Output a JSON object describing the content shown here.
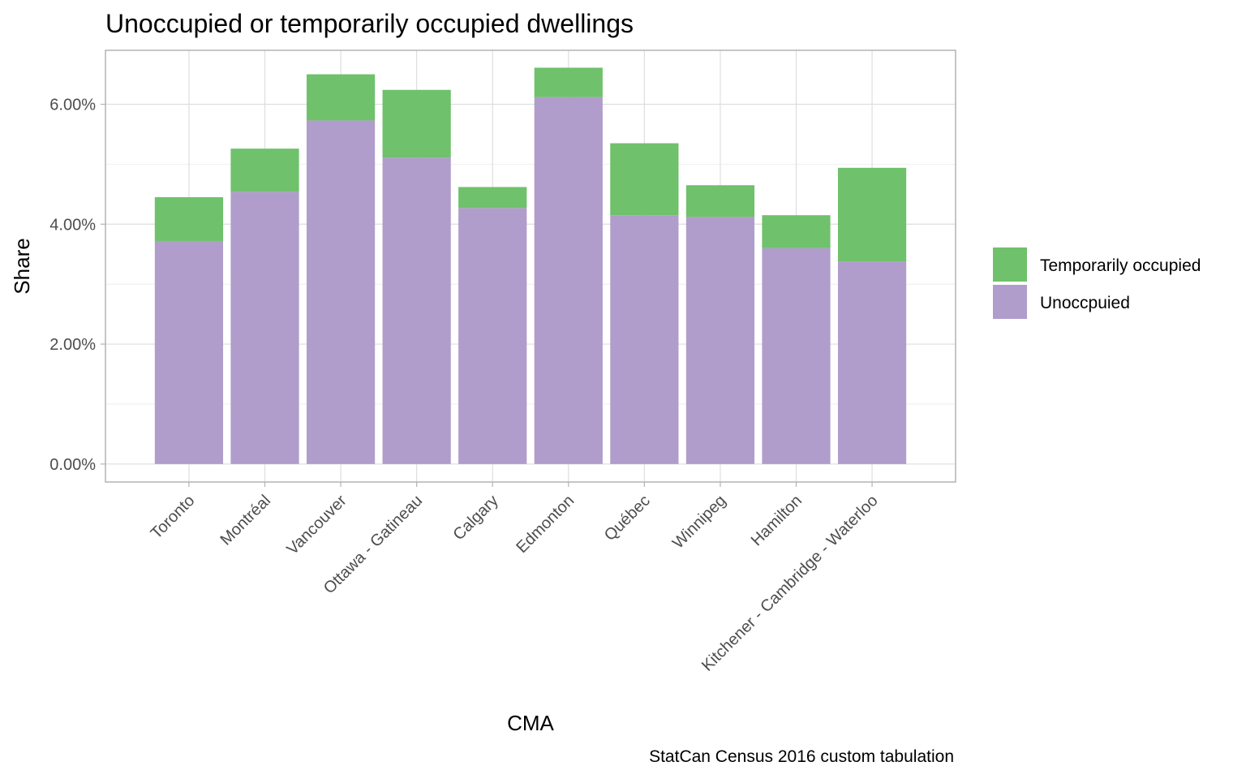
{
  "chart_data": {
    "type": "bar",
    "stacked": true,
    "title": "Unoccupied or temporarily occupied dwellings",
    "xlabel": "CMA",
    "ylabel": "Share",
    "caption": "StatCan Census 2016 custom tabulation",
    "categories": [
      "Toronto",
      "Montréal",
      "Vancouver",
      "Ottawa - Gatineau",
      "Calgary",
      "Edmonton",
      "Québec",
      "Winnipeg",
      "Hamilton",
      "Kitchener - Cambridge - Waterloo"
    ],
    "series": [
      {
        "name": "Unoccpuied",
        "color": "#b09dcb",
        "values": [
          3.72,
          4.54,
          5.73,
          5.11,
          4.27,
          6.12,
          4.15,
          4.12,
          3.6,
          3.38
        ]
      },
      {
        "name": "Temporarily occupied",
        "color": "#6fc16b",
        "values": [
          0.73,
          0.72,
          0.77,
          1.13,
          0.35,
          0.49,
          1.2,
          0.53,
          0.55,
          1.56
        ]
      }
    ],
    "ylim": [
      -0.3,
      6.9
    ],
    "yticks": [
      0,
      2,
      4,
      6
    ],
    "ytick_labels": [
      "0.00%",
      "2.00%",
      "4.00%",
      "6.00%"
    ],
    "grid": true,
    "legend_position": "right",
    "legend_order": [
      "Temporarily occupied",
      "Unoccpuied"
    ]
  }
}
